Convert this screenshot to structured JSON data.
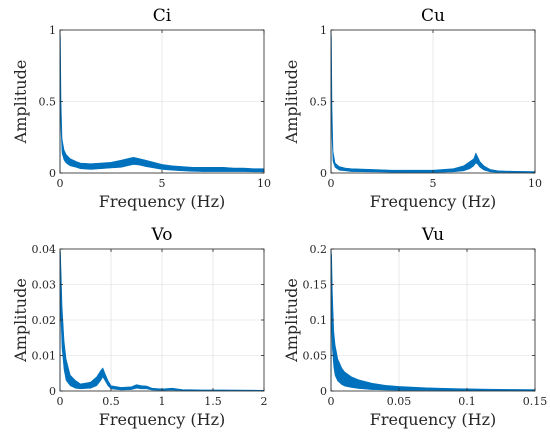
{
  "chart_data": [
    {
      "type": "line",
      "title": "Ci",
      "xlabel": "Frequency (Hz)",
      "ylabel": "Amplitude",
      "xlim": [
        0,
        10
      ],
      "ylim": [
        0,
        1
      ],
      "xticks": [
        0,
        5,
        10
      ],
      "yticks": [
        0,
        0.5,
        1
      ],
      "xtick_labels": [
        "0",
        "5",
        "10"
      ],
      "ytick_labels": [
        "0",
        "0.5",
        "1"
      ],
      "grid": true,
      "color": "#0072BD",
      "x": [
        0,
        0.02,
        0.05,
        0.1,
        0.2,
        0.3,
        0.5,
        0.8,
        1.0,
        1.5,
        2.0,
        2.5,
        3.0,
        3.3,
        3.6,
        3.9,
        4.2,
        4.6,
        5.0,
        5.5,
        6.0,
        6.5,
        7.0,
        7.5,
        8.0,
        8.5,
        9.0,
        9.5,
        10.0
      ],
      "y_low": [
        0,
        0.6,
        0.3,
        0.14,
        0.09,
        0.07,
        0.05,
        0.04,
        0.03,
        0.025,
        0.03,
        0.035,
        0.04,
        0.05,
        0.06,
        0.055,
        0.045,
        0.035,
        0.025,
        0.02,
        0.015,
        0.012,
        0.01,
        0.01,
        0.01,
        0.01,
        0.01,
        0.008,
        0.008
      ],
      "y_high": [
        1.0,
        0.95,
        0.5,
        0.24,
        0.16,
        0.13,
        0.1,
        0.08,
        0.07,
        0.065,
        0.07,
        0.075,
        0.09,
        0.1,
        0.11,
        0.1,
        0.09,
        0.075,
        0.06,
        0.05,
        0.045,
        0.04,
        0.04,
        0.04,
        0.04,
        0.035,
        0.035,
        0.03,
        0.03
      ]
    },
    {
      "type": "line",
      "title": "Cu",
      "xlabel": "Frequency (Hz)",
      "ylabel": "Amplitude",
      "xlim": [
        0,
        10
      ],
      "ylim": [
        0,
        1
      ],
      "xticks": [
        0,
        5,
        10
      ],
      "yticks": [
        0,
        0.5,
        1
      ],
      "xtick_labels": [
        "0",
        "5",
        "10"
      ],
      "ytick_labels": [
        "0",
        "0.5",
        "1"
      ],
      "grid": true,
      "color": "#0072BD",
      "x": [
        0,
        0.02,
        0.05,
        0.1,
        0.2,
        0.4,
        0.7,
        1.0,
        2.0,
        3.0,
        4.0,
        5.0,
        6.0,
        6.5,
        6.8,
        7.0,
        7.1,
        7.2,
        7.3,
        7.5,
        7.8,
        8.2,
        9.0,
        10.0
      ],
      "y_low": [
        0,
        0.6,
        0.25,
        0.08,
        0.04,
        0.02,
        0.015,
        0.01,
        0.008,
        0.006,
        0.005,
        0.005,
        0.008,
        0.015,
        0.03,
        0.05,
        0.07,
        0.06,
        0.04,
        0.02,
        0.008,
        0.005,
        0.003,
        0.003
      ],
      "y_high": [
        1.0,
        0.95,
        0.45,
        0.15,
        0.07,
        0.045,
        0.035,
        0.03,
        0.025,
        0.02,
        0.02,
        0.02,
        0.03,
        0.05,
        0.08,
        0.1,
        0.14,
        0.11,
        0.08,
        0.05,
        0.025,
        0.015,
        0.012,
        0.01
      ]
    },
    {
      "type": "line",
      "title": "Vo",
      "xlabel": "Frequency (Hz)",
      "ylabel": "Amplitude",
      "xlim": [
        0,
        2
      ],
      "ylim": [
        0,
        0.04
      ],
      "xticks": [
        0,
        0.5,
        1,
        1.5,
        2
      ],
      "yticks": [
        0,
        0.01,
        0.02,
        0.03,
        0.04
      ],
      "xtick_labels": [
        "0",
        "0.5",
        "1",
        "1.5",
        "2"
      ],
      "ytick_labels": [
        "0",
        "0.01",
        "0.02",
        "0.03",
        "0.04"
      ],
      "grid": true,
      "color": "#0072BD",
      "x": [
        0,
        0.005,
        0.01,
        0.02,
        0.04,
        0.06,
        0.1,
        0.15,
        0.2,
        0.3,
        0.36,
        0.4,
        0.42,
        0.44,
        0.47,
        0.5,
        0.6,
        0.7,
        0.75,
        0.8,
        0.85,
        0.9,
        1.0,
        1.1,
        1.2,
        1.4,
        1.6,
        2.0
      ],
      "y_low": [
        0,
        0.03,
        0.02,
        0.012,
        0.006,
        0.003,
        0.0015,
        0.0008,
        0.0006,
        0.0008,
        0.0015,
        0.003,
        0.004,
        0.003,
        0.0015,
        0.0006,
        0.0003,
        0.0004,
        0.0008,
        0.0006,
        0.0006,
        0.0003,
        0.0002,
        0.0003,
        0.0001,
        0.0001,
        0.0001,
        0.0001
      ],
      "y_high": [
        0.04,
        0.039,
        0.034,
        0.024,
        0.014,
        0.009,
        0.0045,
        0.003,
        0.002,
        0.0025,
        0.004,
        0.0058,
        0.0065,
        0.005,
        0.003,
        0.0015,
        0.001,
        0.0012,
        0.0018,
        0.0015,
        0.0014,
        0.0008,
        0.0006,
        0.0008,
        0.0004,
        0.0003,
        0.0003,
        0.0002
      ]
    },
    {
      "type": "line",
      "title": "Vu",
      "xlabel": "Frequency (Hz)",
      "ylabel": "Amplitude",
      "xlim": [
        0,
        0.15
      ],
      "ylim": [
        0,
        0.2
      ],
      "xticks": [
        0,
        0.05,
        0.1,
        0.15
      ],
      "yticks": [
        0,
        0.05,
        0.1,
        0.15,
        0.2
      ],
      "xtick_labels": [
        "0",
        "0.05",
        "0.1",
        "0.15"
      ],
      "ytick_labels": [
        "0",
        "0.05",
        "0.1",
        "0.15",
        "0.2"
      ],
      "grid": true,
      "color": "#0072BD",
      "x": [
        0,
        0.0005,
        0.001,
        0.002,
        0.003,
        0.005,
        0.008,
        0.01,
        0.015,
        0.02,
        0.03,
        0.04,
        0.05,
        0.07,
        0.09,
        0.11,
        0.13,
        0.15
      ],
      "y_low": [
        0,
        0.12,
        0.06,
        0.035,
        0.022,
        0.014,
        0.009,
        0.007,
        0.005,
        0.0035,
        0.002,
        0.0015,
        0.0012,
        0.0008,
        0.0006,
        0.0005,
        0.0004,
        0.0003
      ],
      "y_high": [
        0.2,
        0.19,
        0.14,
        0.085,
        0.065,
        0.045,
        0.032,
        0.027,
        0.02,
        0.016,
        0.011,
        0.008,
        0.0065,
        0.0045,
        0.0035,
        0.0028,
        0.0023,
        0.002
      ]
    }
  ]
}
